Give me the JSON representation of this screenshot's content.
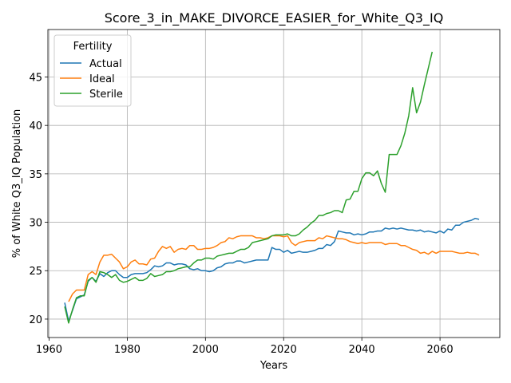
{
  "chart_data": {
    "type": "line",
    "title": "Score_3_in_MAKE_DIVORCE_EASIER_for_White_Q3_IQ",
    "xlabel": "Years",
    "ylabel": "% of White Q3_IQ Population",
    "xlim": [
      1959.7,
      2075.3
    ],
    "ylim": [
      18.1,
      49.9
    ],
    "xticks": [
      1960,
      1980,
      2000,
      2020,
      2040,
      2060
    ],
    "yticks": [
      20,
      25,
      30,
      35,
      40,
      45
    ],
    "grid": true,
    "legend": {
      "title": "Fertility",
      "placement": "top-left"
    },
    "series": [
      {
        "name": "Actual",
        "color": "#1f77b4",
        "points": [
          [
            1964,
            21.7
          ],
          [
            1965,
            19.8
          ],
          [
            1966,
            20.9
          ],
          [
            1967,
            22.1
          ],
          [
            1968,
            22.3
          ],
          [
            1969,
            22.5
          ],
          [
            1970,
            23.9
          ],
          [
            1971,
            24.3
          ],
          [
            1972,
            23.9
          ],
          [
            1973,
            24.7
          ],
          [
            1974,
            24.4
          ],
          [
            1975,
            24.8
          ],
          [
            1976,
            25.0
          ],
          [
            1977,
            25.0
          ],
          [
            1978,
            24.6
          ],
          [
            1979,
            24.3
          ],
          [
            1980,
            24.3
          ],
          [
            1981,
            24.6
          ],
          [
            1982,
            24.7
          ],
          [
            1983,
            24.7
          ],
          [
            1984,
            24.7
          ],
          [
            1985,
            24.8
          ],
          [
            1986,
            25.1
          ],
          [
            1987,
            25.5
          ],
          [
            1988,
            25.4
          ],
          [
            1989,
            25.5
          ],
          [
            1990,
            25.8
          ],
          [
            1991,
            25.8
          ],
          [
            1992,
            25.6
          ],
          [
            1993,
            25.7
          ],
          [
            1994,
            25.7
          ],
          [
            1995,
            25.6
          ],
          [
            1996,
            25.2
          ],
          [
            1997,
            25.1
          ],
          [
            1998,
            25.2
          ],
          [
            1999,
            25.0
          ],
          [
            2000,
            25.0
          ],
          [
            2001,
            24.9
          ],
          [
            2002,
            25.0
          ],
          [
            2003,
            25.3
          ],
          [
            2004,
            25.4
          ],
          [
            2005,
            25.7
          ],
          [
            2006,
            25.8
          ],
          [
            2007,
            25.8
          ],
          [
            2008,
            26.0
          ],
          [
            2009,
            26.0
          ],
          [
            2010,
            25.8
          ],
          [
            2011,
            25.9
          ],
          [
            2012,
            26.0
          ],
          [
            2013,
            26.1
          ],
          [
            2014,
            26.1
          ],
          [
            2015,
            26.1
          ],
          [
            2016,
            26.1
          ],
          [
            2017,
            27.4
          ],
          [
            2018,
            27.2
          ],
          [
            2019,
            27.2
          ],
          [
            2020,
            26.9
          ],
          [
            2021,
            27.1
          ],
          [
            2022,
            26.8
          ],
          [
            2023,
            26.9
          ],
          [
            2024,
            27.0
          ],
          [
            2025,
            26.9
          ],
          [
            2026,
            26.9
          ],
          [
            2027,
            27.0
          ],
          [
            2028,
            27.1
          ],
          [
            2029,
            27.3
          ],
          [
            2030,
            27.3
          ],
          [
            2031,
            27.7
          ],
          [
            2032,
            27.6
          ],
          [
            2033,
            28.0
          ],
          [
            2034,
            29.1
          ],
          [
            2035,
            29.0
          ],
          [
            2036,
            28.9
          ],
          [
            2037,
            28.9
          ],
          [
            2038,
            28.7
          ],
          [
            2039,
            28.8
          ],
          [
            2040,
            28.7
          ],
          [
            2041,
            28.8
          ],
          [
            2042,
            29.0
          ],
          [
            2043,
            29.0
          ],
          [
            2044,
            29.1
          ],
          [
            2045,
            29.1
          ],
          [
            2046,
            29.4
          ],
          [
            2047,
            29.3
          ],
          [
            2048,
            29.4
          ],
          [
            2049,
            29.3
          ],
          [
            2050,
            29.4
          ],
          [
            2051,
            29.3
          ],
          [
            2052,
            29.2
          ],
          [
            2053,
            29.2
          ],
          [
            2054,
            29.1
          ],
          [
            2055,
            29.2
          ],
          [
            2056,
            29.0
          ],
          [
            2057,
            29.1
          ],
          [
            2058,
            29.0
          ],
          [
            2059,
            28.9
          ],
          [
            2060,
            29.1
          ],
          [
            2061,
            28.9
          ],
          [
            2062,
            29.3
          ],
          [
            2063,
            29.2
          ],
          [
            2064,
            29.7
          ],
          [
            2065,
            29.7
          ],
          [
            2066,
            30.0
          ],
          [
            2067,
            30.1
          ],
          [
            2068,
            30.2
          ],
          [
            2069,
            30.4
          ],
          [
            2070,
            30.3
          ]
        ]
      },
      {
        "name": "Ideal",
        "color": "#ff7f0e",
        "points": [
          [
            1965,
            21.8
          ],
          [
            1966,
            22.6
          ],
          [
            1967,
            23.0
          ],
          [
            1968,
            23.0
          ],
          [
            1969,
            23.0
          ],
          [
            1970,
            24.6
          ],
          [
            1971,
            24.9
          ],
          [
            1972,
            24.6
          ],
          [
            1973,
            25.9
          ],
          [
            1974,
            26.6
          ],
          [
            1975,
            26.6
          ],
          [
            1976,
            26.7
          ],
          [
            1977,
            26.3
          ],
          [
            1978,
            25.9
          ],
          [
            1979,
            25.2
          ],
          [
            1980,
            25.4
          ],
          [
            1981,
            25.9
          ],
          [
            1982,
            26.1
          ],
          [
            1983,
            25.7
          ],
          [
            1984,
            25.7
          ],
          [
            1985,
            25.6
          ],
          [
            1986,
            26.2
          ],
          [
            1987,
            26.3
          ],
          [
            1988,
            27.0
          ],
          [
            1989,
            27.5
          ],
          [
            1990,
            27.3
          ],
          [
            1991,
            27.5
          ],
          [
            1992,
            26.9
          ],
          [
            1993,
            27.2
          ],
          [
            1994,
            27.3
          ],
          [
            1995,
            27.2
          ],
          [
            1996,
            27.6
          ],
          [
            1997,
            27.6
          ],
          [
            1998,
            27.2
          ],
          [
            1999,
            27.2
          ],
          [
            2000,
            27.3
          ],
          [
            2001,
            27.3
          ],
          [
            2002,
            27.4
          ],
          [
            2003,
            27.6
          ],
          [
            2004,
            27.9
          ],
          [
            2005,
            28.0
          ],
          [
            2006,
            28.4
          ],
          [
            2007,
            28.3
          ],
          [
            2008,
            28.5
          ],
          [
            2009,
            28.6
          ],
          [
            2010,
            28.6
          ],
          [
            2011,
            28.6
          ],
          [
            2012,
            28.6
          ],
          [
            2013,
            28.4
          ],
          [
            2014,
            28.4
          ],
          [
            2015,
            28.3
          ],
          [
            2016,
            28.4
          ],
          [
            2017,
            28.6
          ],
          [
            2018,
            28.6
          ],
          [
            2019,
            28.6
          ],
          [
            2020,
            28.5
          ],
          [
            2021,
            28.6
          ],
          [
            2022,
            27.9
          ],
          [
            2023,
            27.6
          ],
          [
            2024,
            27.9
          ],
          [
            2025,
            28.0
          ],
          [
            2026,
            28.1
          ],
          [
            2027,
            28.1
          ],
          [
            2028,
            28.1
          ],
          [
            2029,
            28.4
          ],
          [
            2030,
            28.3
          ],
          [
            2031,
            28.6
          ],
          [
            2032,
            28.5
          ],
          [
            2033,
            28.4
          ],
          [
            2034,
            28.3
          ],
          [
            2035,
            28.3
          ],
          [
            2036,
            28.2
          ],
          [
            2037,
            28.0
          ],
          [
            2038,
            27.9
          ],
          [
            2039,
            27.8
          ],
          [
            2040,
            27.9
          ],
          [
            2041,
            27.8
          ],
          [
            2042,
            27.9
          ],
          [
            2043,
            27.9
          ],
          [
            2044,
            27.9
          ],
          [
            2045,
            27.9
          ],
          [
            2046,
            27.7
          ],
          [
            2047,
            27.8
          ],
          [
            2048,
            27.8
          ],
          [
            2049,
            27.8
          ],
          [
            2050,
            27.6
          ],
          [
            2051,
            27.6
          ],
          [
            2052,
            27.4
          ],
          [
            2053,
            27.2
          ],
          [
            2054,
            27.1
          ],
          [
            2055,
            26.8
          ],
          [
            2056,
            26.9
          ],
          [
            2057,
            26.7
          ],
          [
            2058,
            27.0
          ],
          [
            2059,
            26.8
          ],
          [
            2060,
            27.0
          ],
          [
            2061,
            27.0
          ],
          [
            2062,
            27.0
          ],
          [
            2063,
            27.0
          ],
          [
            2064,
            26.9
          ],
          [
            2065,
            26.8
          ],
          [
            2066,
            26.8
          ],
          [
            2067,
            26.9
          ],
          [
            2068,
            26.8
          ],
          [
            2069,
            26.8
          ],
          [
            2070,
            26.6
          ]
        ]
      },
      {
        "name": "Sterile",
        "color": "#2ca02c",
        "points": [
          [
            1964,
            21.3
          ],
          [
            1965,
            19.6
          ],
          [
            1966,
            21.0
          ],
          [
            1967,
            22.2
          ],
          [
            1968,
            22.4
          ],
          [
            1969,
            22.4
          ],
          [
            1970,
            24.0
          ],
          [
            1971,
            24.3
          ],
          [
            1972,
            23.8
          ],
          [
            1973,
            24.9
          ],
          [
            1974,
            24.8
          ],
          [
            1975,
            24.6
          ],
          [
            1976,
            24.3
          ],
          [
            1977,
            24.6
          ],
          [
            1978,
            24.0
          ],
          [
            1979,
            23.8
          ],
          [
            1980,
            23.9
          ],
          [
            1981,
            24.1
          ],
          [
            1982,
            24.3
          ],
          [
            1983,
            24.0
          ],
          [
            1984,
            24.0
          ],
          [
            1985,
            24.2
          ],
          [
            1986,
            24.7
          ],
          [
            1987,
            24.4
          ],
          [
            1988,
            24.5
          ],
          [
            1989,
            24.6
          ],
          [
            1990,
            24.9
          ],
          [
            1991,
            24.9
          ],
          [
            1992,
            25.0
          ],
          [
            1993,
            25.2
          ],
          [
            1994,
            25.3
          ],
          [
            1995,
            25.4
          ],
          [
            1996,
            25.4
          ],
          [
            1997,
            25.8
          ],
          [
            1998,
            26.1
          ],
          [
            1999,
            26.1
          ],
          [
            2000,
            26.3
          ],
          [
            2001,
            26.3
          ],
          [
            2002,
            26.2
          ],
          [
            2003,
            26.5
          ],
          [
            2004,
            26.6
          ],
          [
            2005,
            26.7
          ],
          [
            2006,
            26.8
          ],
          [
            2007,
            26.8
          ],
          [
            2008,
            27.0
          ],
          [
            2009,
            27.2
          ],
          [
            2010,
            27.2
          ],
          [
            2011,
            27.4
          ],
          [
            2012,
            27.9
          ],
          [
            2013,
            28.0
          ],
          [
            2014,
            28.1
          ],
          [
            2015,
            28.2
          ],
          [
            2016,
            28.3
          ],
          [
            2017,
            28.6
          ],
          [
            2018,
            28.7
          ],
          [
            2019,
            28.7
          ],
          [
            2020,
            28.7
          ],
          [
            2021,
            28.8
          ],
          [
            2022,
            28.6
          ],
          [
            2023,
            28.6
          ],
          [
            2024,
            28.8
          ],
          [
            2025,
            29.2
          ],
          [
            2026,
            29.5
          ],
          [
            2027,
            29.9
          ],
          [
            2028,
            30.2
          ],
          [
            2029,
            30.7
          ],
          [
            2030,
            30.7
          ],
          [
            2031,
            30.9
          ],
          [
            2032,
            31.0
          ],
          [
            2033,
            31.2
          ],
          [
            2034,
            31.2
          ],
          [
            2035,
            31.0
          ],
          [
            2036,
            32.3
          ],
          [
            2037,
            32.4
          ],
          [
            2038,
            33.2
          ],
          [
            2039,
            33.2
          ],
          [
            2040,
            34.5
          ],
          [
            2041,
            35.1
          ],
          [
            2042,
            35.1
          ],
          [
            2043,
            34.8
          ],
          [
            2044,
            35.3
          ],
          [
            2045,
            34.0
          ],
          [
            2046,
            33.1
          ],
          [
            2047,
            37.0
          ],
          [
            2048,
            37.0
          ],
          [
            2049,
            37.0
          ],
          [
            2050,
            37.9
          ],
          [
            2051,
            39.2
          ],
          [
            2052,
            41.0
          ],
          [
            2053,
            43.9
          ],
          [
            2054,
            41.3
          ],
          [
            2055,
            42.4
          ],
          [
            2056,
            44.2
          ],
          [
            2057,
            45.9
          ],
          [
            2058,
            47.6
          ]
        ]
      }
    ]
  }
}
